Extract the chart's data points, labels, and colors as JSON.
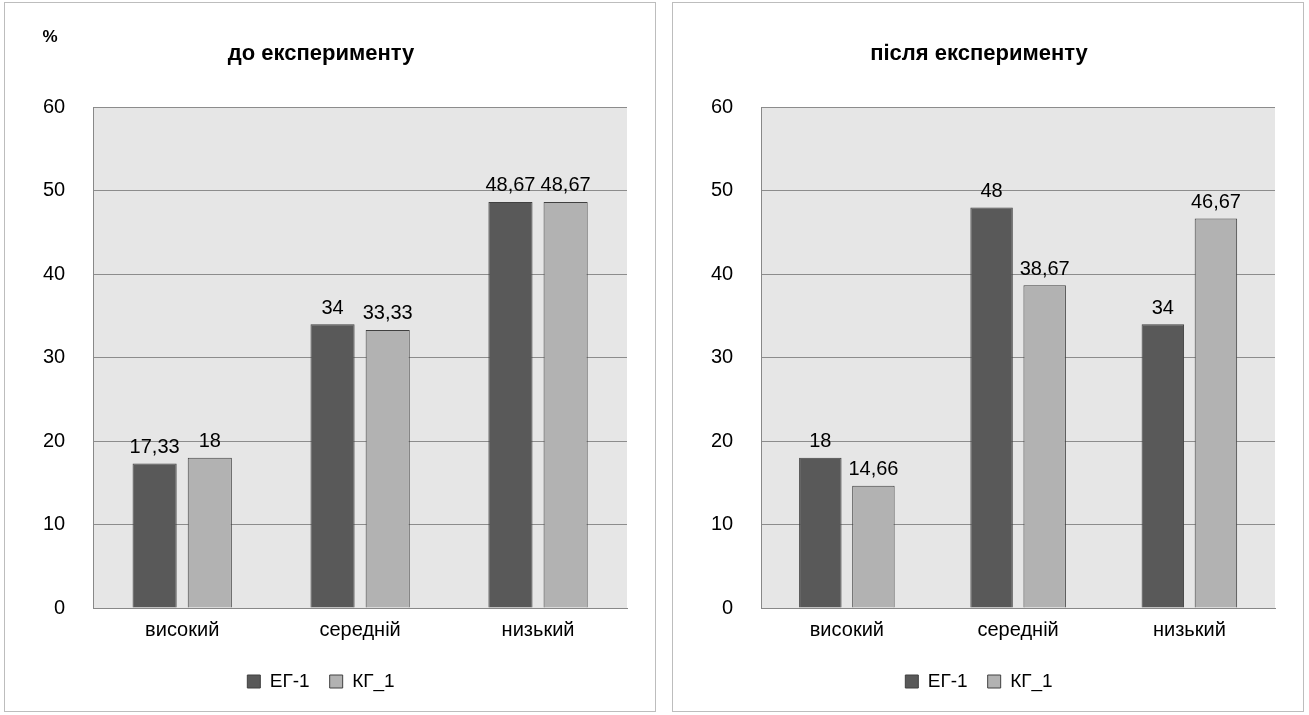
{
  "chart_data": [
    {
      "type": "bar",
      "title": "до експерименту",
      "ylabel": "%",
      "categories": [
        "високий",
        "середній",
        "низький"
      ],
      "ylim": [
        0,
        60
      ],
      "yticks": [
        0,
        10,
        20,
        30,
        40,
        50,
        60
      ],
      "grid": "y",
      "legend": "bottom",
      "series": [
        {
          "name": "ЕГ-1",
          "color": "#595959",
          "values": [
            17.33,
            34,
            48.67
          ],
          "value_labels": [
            "17,33",
            "34",
            "48,67"
          ]
        },
        {
          "name": "КГ_1",
          "color": "#b2b2b2",
          "values": [
            18,
            33.33,
            48.67
          ],
          "value_labels": [
            "18",
            "33,33",
            "48,67"
          ]
        }
      ]
    },
    {
      "type": "bar",
      "title": "після експерименту",
      "categories": [
        "високий",
        "середній",
        "низький"
      ],
      "ylim": [
        0,
        60
      ],
      "yticks": [
        0,
        10,
        20,
        30,
        40,
        50,
        60
      ],
      "grid": "y",
      "legend": "bottom",
      "series": [
        {
          "name": "ЕГ-1",
          "color": "#595959",
          "values": [
            18,
            48,
            34
          ],
          "value_labels": [
            "18",
            "48",
            "34"
          ]
        },
        {
          "name": "КГ_1",
          "color": "#b2b2b2",
          "values": [
            14.66,
            38.67,
            46.67
          ],
          "value_labels": [
            "14,66",
            "38,67",
            "46,67"
          ]
        }
      ]
    }
  ]
}
